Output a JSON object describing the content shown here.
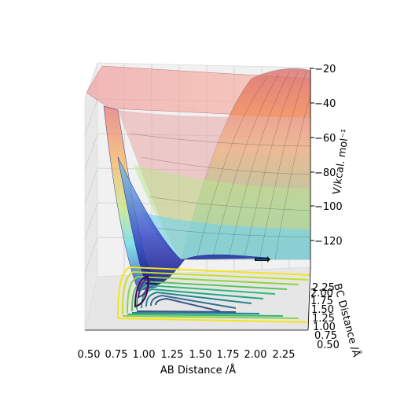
{
  "chart_data": {
    "type": "surface3d",
    "xlabel": "AB Distance /Å",
    "ylabel": "BC Distance /Å",
    "zlabel": "V/kcal. mol⁻¹",
    "x_ticks": [
      "0.50",
      "0.75",
      "1.00",
      "1.25",
      "1.50",
      "1.75",
      "2.00",
      "2.25"
    ],
    "y_ticks": [
      "0.50",
      "0.75",
      "1.00",
      "1.25",
      "1.50",
      "1.75",
      "2.00",
      "2.25"
    ],
    "z_ticks": [
      "−20",
      "−40",
      "−60",
      "−80",
      "−100",
      "−120"
    ],
    "xlim": [
      0.5,
      2.5
    ],
    "ylim": [
      0.5,
      2.5
    ],
    "zlim": [
      -135,
      -20
    ],
    "colormap_surface": "jet",
    "colormap_contour": "viridis",
    "grid": true,
    "trajectory_marker": "black arrow near AB 2.0 Å at surface floor"
  }
}
